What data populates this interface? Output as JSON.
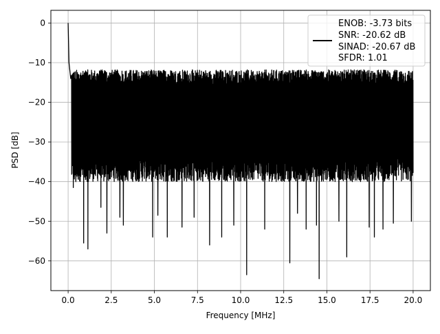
{
  "chart_data": {
    "type": "line",
    "title": "",
    "xlabel": "Frequency [MHz]",
    "ylabel": "PSD [dB]",
    "xlim": [
      -1.0,
      21.0
    ],
    "ylim": [
      -67.5,
      3.2
    ],
    "xticks": [
      0.0,
      2.5,
      5.0,
      7.5,
      10.0,
      12.5,
      15.0,
      17.5,
      20.0
    ],
    "xtick_labels": [
      "0.0",
      "2.5",
      "5.0",
      "7.5",
      "10.0",
      "12.5",
      "15.0",
      "17.5",
      "20.0"
    ],
    "yticks": [
      0,
      -10,
      -20,
      -30,
      -40,
      -50,
      -60
    ],
    "ytick_labels": [
      "0",
      "−10",
      "−20",
      "−30",
      "−40",
      "−50",
      "−60"
    ],
    "grid": true,
    "legend_position": "top-right",
    "legend_lines": [
      "ENOB: -3.73 bits",
      "SNR: -20.62 dB",
      "SINAD: -20.67 dB",
      "SFDR: 1.01"
    ],
    "series": [
      {
        "color": "#000000",
        "x_range": [
          0.0,
          20.0
        ],
        "noise_top": -15,
        "noise_bottom": -37,
        "peaks": [
          [
            0.0,
            0.0
          ],
          [
            0.05,
            -10.0
          ],
          [
            0.15,
            -14.0
          ]
        ],
        "dips": [
          [
            0.3,
            -41.5
          ],
          [
            0.45,
            -40.0
          ],
          [
            0.9,
            -55.5
          ],
          [
            1.15,
            -57.0
          ],
          [
            1.9,
            -46.5
          ],
          [
            2.25,
            -53.0
          ],
          [
            3.0,
            -49.0
          ],
          [
            3.2,
            -51.0
          ],
          [
            4.9,
            -54.0
          ],
          [
            5.2,
            -48.5
          ],
          [
            5.75,
            -54.0
          ],
          [
            6.6,
            -51.5
          ],
          [
            7.3,
            -49.0
          ],
          [
            8.2,
            -56.0
          ],
          [
            8.9,
            -54.0
          ],
          [
            9.6,
            -51.0
          ],
          [
            10.35,
            -63.5
          ],
          [
            11.4,
            -52.0
          ],
          [
            12.85,
            -60.5
          ],
          [
            13.3,
            -48.0
          ],
          [
            13.8,
            -52.0
          ],
          [
            14.4,
            -51.0
          ],
          [
            14.55,
            -64.5
          ],
          [
            15.7,
            -50.0
          ],
          [
            16.15,
            -59.0
          ],
          [
            17.45,
            -51.5
          ],
          [
            17.75,
            -54.0
          ],
          [
            18.25,
            -52.0
          ],
          [
            18.85,
            -50.5
          ],
          [
            19.9,
            -50.0
          ]
        ]
      }
    ]
  }
}
